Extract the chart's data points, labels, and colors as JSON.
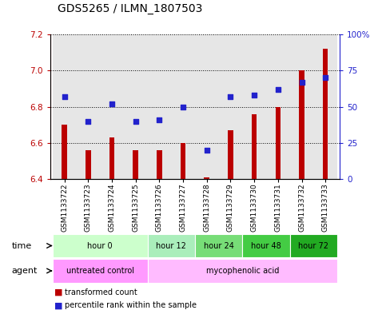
{
  "title": "GDS5265 / ILMN_1807503",
  "samples": [
    "GSM1133722",
    "GSM1133723",
    "GSM1133724",
    "GSM1133725",
    "GSM1133726",
    "GSM1133727",
    "GSM1133728",
    "GSM1133729",
    "GSM1133730",
    "GSM1133731",
    "GSM1133732",
    "GSM1133733"
  ],
  "bar_values": [
    6.7,
    6.56,
    6.63,
    6.56,
    6.56,
    6.6,
    6.41,
    6.67,
    6.76,
    6.8,
    7.0,
    7.12
  ],
  "percentile_values": [
    57,
    40,
    52,
    40,
    41,
    50,
    20,
    57,
    58,
    62,
    67,
    70
  ],
  "ylim_left": [
    6.4,
    7.2
  ],
  "ylim_right": [
    0,
    100
  ],
  "yticks_left": [
    6.4,
    6.6,
    6.8,
    7.0,
    7.2
  ],
  "yticks_right": [
    0,
    25,
    50,
    75,
    100
  ],
  "ytick_labels_right": [
    "0",
    "25",
    "50",
    "75",
    "100%"
  ],
  "bar_color": "#bb0000",
  "dot_color": "#2222cc",
  "bar_bottom": 6.4,
  "time_colors": [
    "#ccffcc",
    "#aaeebb",
    "#77dd77",
    "#44cc44",
    "#22aa22"
  ],
  "time_groups": [
    {
      "label": "hour 0",
      "start": 0,
      "end": 4
    },
    {
      "label": "hour 12",
      "start": 4,
      "end": 6
    },
    {
      "label": "hour 24",
      "start": 6,
      "end": 8
    },
    {
      "label": "hour 48",
      "start": 8,
      "end": 10
    },
    {
      "label": "hour 72",
      "start": 10,
      "end": 12
    }
  ],
  "agent_colors": [
    "#ff99ff",
    "#ffbbff"
  ],
  "agent_groups": [
    {
      "label": "untreated control",
      "start": 0,
      "end": 4
    },
    {
      "label": "mycophenolic acid",
      "start": 4,
      "end": 12
    }
  ],
  "background_color": "#ffffff",
  "sample_bg_color": "#c8c8c8",
  "title_fontsize": 10,
  "tick_fontsize": 7.5,
  "sample_label_fontsize": 6.5,
  "row_label_fontsize": 8,
  "row_content_fontsize": 7,
  "legend_fontsize": 7
}
